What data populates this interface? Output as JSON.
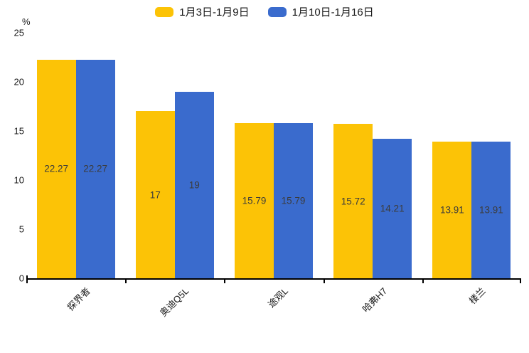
{
  "chart_data": {
    "type": "bar",
    "title": "",
    "categories": [
      "探界者",
      "奥迪Q5L",
      "途观L",
      "哈弗H7",
      "楼兰"
    ],
    "series": [
      {
        "name": "1月3日-1月9日",
        "color": "#FCC306",
        "values": [
          22.27,
          17,
          15.79,
          15.72,
          13.91
        ]
      },
      {
        "name": "1月10日-1月16日",
        "color": "#3A6BCD",
        "values": [
          22.27,
          19,
          15.79,
          14.21,
          13.91
        ]
      }
    ],
    "xlabel": "",
    "ylabel": "%",
    "ylim": [
      0,
      25
    ],
    "yticks": [
      0,
      5,
      10,
      15,
      20,
      25
    ],
    "grid": false,
    "legend_position": "top-center",
    "value_label_position": "inside-center",
    "x_tick_label_rotation_deg": 45
  },
  "colors": {
    "background": "#FFFFFF",
    "axis": "#000000",
    "axis_label_text": "#1A1A1A",
    "value_label_text": "#3C3C3C"
  }
}
